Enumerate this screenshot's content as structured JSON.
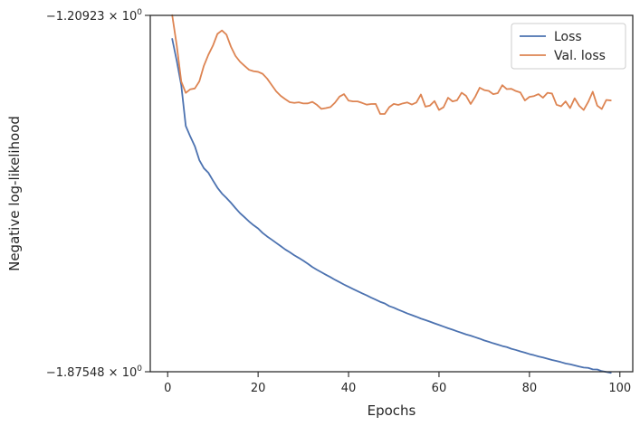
{
  "chart_data": {
    "type": "line",
    "xlabel": "Epochs",
    "ylabel": "Negative log-likelihood",
    "xlim": [
      -3.85,
      102.85
    ],
    "ylim": [
      -1.87548,
      -1.20923
    ],
    "x_ticks": [
      0,
      20,
      40,
      60,
      80,
      100
    ],
    "y_ticks": [
      {
        "value": -1.20923,
        "mantissa": "−1.20923",
        "base": "10",
        "exp": "0"
      },
      {
        "value": -1.87548,
        "mantissa": "−1.87548",
        "base": "10",
        "exp": "0"
      }
    ],
    "grid": false,
    "legend_position": "top-right",
    "series": [
      {
        "name": "Loss",
        "color": "#4c72b0",
        "x": [
          1,
          2,
          3,
          4,
          5,
          6,
          7,
          8,
          9,
          10,
          11,
          12,
          13,
          14,
          15,
          16,
          17,
          18,
          19,
          20,
          21,
          22,
          23,
          24,
          25,
          26,
          27,
          28,
          29,
          30,
          31,
          32,
          33,
          34,
          35,
          36,
          37,
          38,
          39,
          40,
          41,
          42,
          43,
          44,
          45,
          46,
          47,
          48,
          49,
          50,
          51,
          52,
          53,
          54,
          55,
          56,
          57,
          58,
          59,
          60,
          61,
          62,
          63,
          64,
          65,
          66,
          67,
          68,
          69,
          70,
          71,
          72,
          73,
          74,
          75,
          76,
          77,
          78,
          79,
          80,
          81,
          82,
          83,
          84,
          85,
          86,
          87,
          88,
          89,
          90,
          91,
          92,
          93,
          94,
          95,
          96,
          97,
          98
        ],
        "y": [
          -1.2532,
          -1.294,
          -1.3395,
          -1.416,
          -1.4357,
          -1.4537,
          -1.4798,
          -1.4949,
          -1.5035,
          -1.5177,
          -1.5314,
          -1.5423,
          -1.5506,
          -1.5597,
          -1.5696,
          -1.579,
          -1.5867,
          -1.5946,
          -1.6016,
          -1.6077,
          -1.616,
          -1.6226,
          -1.6285,
          -1.6346,
          -1.6407,
          -1.6469,
          -1.6521,
          -1.6578,
          -1.6627,
          -1.668,
          -1.6736,
          -1.6798,
          -1.6848,
          -1.6895,
          -1.6942,
          -1.6987,
          -1.7036,
          -1.708,
          -1.7125,
          -1.7167,
          -1.7208,
          -1.7248,
          -1.7289,
          -1.7327,
          -1.7369,
          -1.7408,
          -1.7448,
          -1.7478,
          -1.7528,
          -1.7557,
          -1.7596,
          -1.7629,
          -1.7665,
          -1.7696,
          -1.7727,
          -1.7761,
          -1.7789,
          -1.7818,
          -1.785,
          -1.788,
          -1.791,
          -1.7941,
          -1.7968,
          -1.7999,
          -1.8028,
          -1.8057,
          -1.8081,
          -1.8109,
          -1.8137,
          -1.8169,
          -1.8195,
          -1.8223,
          -1.8247,
          -1.8274,
          -1.8294,
          -1.8326,
          -1.8348,
          -1.8374,
          -1.8397,
          -1.8424,
          -1.8445,
          -1.8469,
          -1.8488,
          -1.8512,
          -1.8535,
          -1.8555,
          -1.8576,
          -1.8601,
          -1.8615,
          -1.8636,
          -1.8658,
          -1.8676,
          -1.8683,
          -1.8711,
          -1.8713,
          -1.8743,
          -1.8759,
          -1.8776
        ]
      },
      {
        "name": "Val. loss",
        "color": "#dd8452",
        "x": [
          1,
          2,
          3,
          4,
          5,
          6,
          7,
          8,
          9,
          10,
          11,
          12,
          13,
          14,
          15,
          16,
          17,
          18,
          19,
          20,
          21,
          22,
          23,
          24,
          25,
          26,
          27,
          28,
          29,
          30,
          31,
          32,
          33,
          34,
          35,
          36,
          37,
          38,
          39,
          40,
          41,
          42,
          43,
          44,
          45,
          46,
          47,
          48,
          49,
          50,
          51,
          52,
          53,
          54,
          55,
          56,
          57,
          58,
          59,
          60,
          61,
          62,
          63,
          64,
          65,
          66,
          67,
          68,
          69,
          70,
          71,
          72,
          73,
          74,
          75,
          76,
          77,
          78,
          79,
          80,
          81,
          82,
          83,
          84,
          85,
          86,
          87,
          88,
          89,
          90,
          91,
          92,
          93,
          94,
          95,
          96,
          97,
          98
        ],
        "y": [
          -1.2089,
          -1.2651,
          -1.3327,
          -1.3542,
          -1.3474,
          -1.3459,
          -1.3327,
          -1.3036,
          -1.2829,
          -1.2659,
          -1.2439,
          -1.2374,
          -1.2452,
          -1.268,
          -1.2851,
          -1.2959,
          -1.3036,
          -1.311,
          -1.3137,
          -1.3148,
          -1.3185,
          -1.3275,
          -1.3395,
          -1.3513,
          -1.3597,
          -1.3659,
          -1.3716,
          -1.3729,
          -1.3718,
          -1.3739,
          -1.3738,
          -1.3709,
          -1.3765,
          -1.3841,
          -1.3826,
          -1.3806,
          -1.3724,
          -1.3611,
          -1.3565,
          -1.3686,
          -1.3701,
          -1.3701,
          -1.3729,
          -1.3761,
          -1.375,
          -1.3748,
          -1.3935,
          -1.3935,
          -1.3809,
          -1.3748,
          -1.3766,
          -1.3738,
          -1.372,
          -1.3759,
          -1.372,
          -1.3572,
          -1.3799,
          -1.3778,
          -1.3694,
          -1.386,
          -1.381,
          -1.3633,
          -1.3701,
          -1.3679,
          -1.3539,
          -1.3598,
          -1.3749,
          -1.3615,
          -1.3445,
          -1.3489,
          -1.3504,
          -1.3565,
          -1.3546,
          -1.3397,
          -1.3471,
          -1.3465,
          -1.3507,
          -1.3534,
          -1.3683,
          -1.3616,
          -1.3601,
          -1.3564,
          -1.3632,
          -1.3541,
          -1.3554,
          -1.3763,
          -1.3791,
          -1.3701,
          -1.3826,
          -1.3642,
          -1.3781,
          -1.3861,
          -1.3711,
          -1.352,
          -1.378,
          -1.3843,
          -1.3673,
          -1.3683
        ]
      }
    ]
  }
}
